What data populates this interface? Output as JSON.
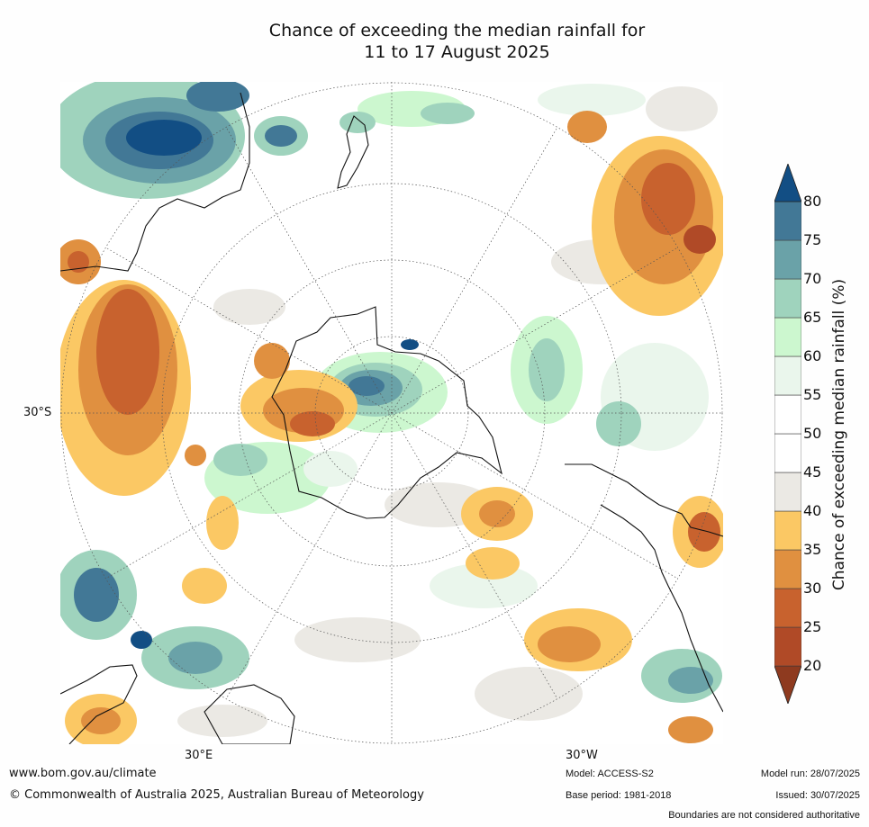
{
  "title": {
    "line1": "Chance of exceeding the median rainfall for",
    "line2": "11 to 17 August 2025"
  },
  "map": {
    "lat_label": "30°S",
    "lon_labels": [
      "30°E",
      "30°W"
    ]
  },
  "colorbar": {
    "label": "Chance of exceeding median rainfall (%)",
    "ticks": [
      "20",
      "25",
      "30",
      "35",
      "40",
      "45",
      "50",
      "55",
      "60",
      "65",
      "70",
      "75",
      "80"
    ],
    "bins": [
      {
        "color": "#8e3a1f"
      },
      {
        "color": "#b04a27"
      },
      {
        "color": "#c8622e"
      },
      {
        "color": "#e09040"
      },
      {
        "color": "#fbc864"
      },
      {
        "color": "#ebe9e4"
      },
      {
        "color": "#ffffff"
      },
      {
        "color": "#ffffff"
      },
      {
        "color": "#eaf6ec"
      },
      {
        "color": "#ccf7cf"
      },
      {
        "color": "#9fd3bd"
      },
      {
        "color": "#6aa2a8"
      },
      {
        "color": "#427896"
      },
      {
        "color": "#124e84"
      }
    ]
  },
  "footer": {
    "website": "www.bom.gov.au/climate",
    "copyright": "© Commonwealth of Australia 2025, Australian Bureau of Meteorology",
    "model": "Model: ACCESS-S2",
    "base_period": "Base period: 1981-2018",
    "model_run": "Model run: 28/07/2025",
    "issued": "Issued: 30/07/2025",
    "disclaimer": "Boundaries are not considered authoritative"
  }
}
